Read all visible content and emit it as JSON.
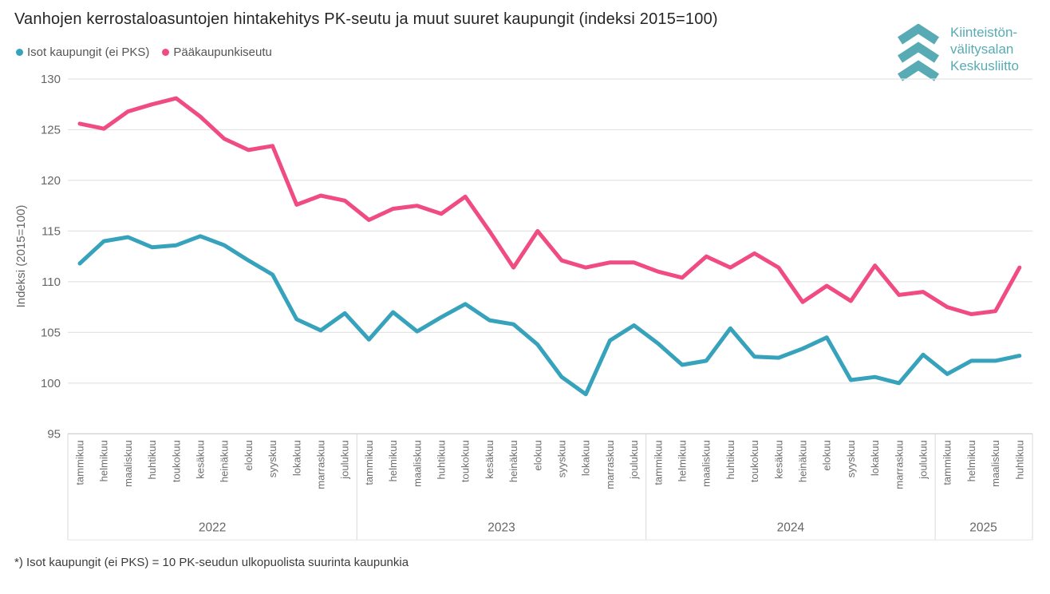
{
  "title": "Vanhojen kerrostaloasuntojen hintakehitys PK-seutu ja muut suuret kaupungit (indeksi 2015=100)",
  "legend": [
    {
      "label": "Isot kaupungit (ei PKS)",
      "color": "#36A2BC"
    },
    {
      "label": "Pääkaupunkiseutu",
      "color": "#F04C82"
    }
  ],
  "logo": {
    "icon": "triple-chevron-up-icon",
    "color": "#58ABB4",
    "lines": [
      "Kiinteistön-",
      "välitysalan",
      "Keskusliitto"
    ]
  },
  "footnote": "*) Isot kaupungit (ei PKS) = 10 PK-seudun ulkopuolista suurinta kaupunkia",
  "chart_data": {
    "type": "line",
    "title": "Vanhojen kerrostaloasuntojen hintakehitys PK-seutu ja muut suuret kaupungit (indeksi 2015=100)",
    "xlabel": "",
    "ylabel": "Indeksi (2015=100)",
    "ylim": [
      95,
      130
    ],
    "yticks": [
      95,
      100,
      105,
      110,
      115,
      120,
      125,
      130
    ],
    "grid": true,
    "legend_position": "top-left",
    "x_months": [
      "tammikuu",
      "helmikuu",
      "maaliskuu",
      "huhtikuu",
      "toukokuu",
      "kesäkuu",
      "heinäkuu",
      "elokuu",
      "syyskuu",
      "lokakuu",
      "marraskuu",
      "joulukuu",
      "tammikuu",
      "helmikuu",
      "maaliskuu",
      "huhtikuu",
      "toukokuu",
      "kesäkuu",
      "heinäkuu",
      "elokuu",
      "syyskuu",
      "lokakuu",
      "marraskuu",
      "joulukuu",
      "tammikuu",
      "helmikuu",
      "maaliskuu",
      "huhtikuu",
      "toukokuu",
      "kesäkuu",
      "heinäkuu",
      "elokuu",
      "syyskuu",
      "lokakuu",
      "marraskuu",
      "joulukuu",
      "tammikuu",
      "helmikuu",
      "maaliskuu",
      "huhtikuu"
    ],
    "years": [
      {
        "label": "2022",
        "months": 12
      },
      {
        "label": "2023",
        "months": 12
      },
      {
        "label": "2024",
        "months": 12
      },
      {
        "label": "2025",
        "months": 4
      }
    ],
    "series": [
      {
        "name": "Isot kaupungit (ei PKS)",
        "color": "#36A2BC",
        "values": [
          111.8,
          114.0,
          114.4,
          113.4,
          113.6,
          114.5,
          113.6,
          112.1,
          110.7,
          106.3,
          105.2,
          106.9,
          104.3,
          107.0,
          105.1,
          106.5,
          107.8,
          106.2,
          105.8,
          103.8,
          100.6,
          98.9,
          104.2,
          105.7,
          103.9,
          101.8,
          102.2,
          105.4,
          102.6,
          102.5,
          103.4,
          104.5,
          100.3,
          100.6,
          100.0,
          102.8,
          100.9,
          102.2,
          102.2,
          102.7
        ]
      },
      {
        "name": "Pääkaupunkiseutu",
        "color": "#F04C82",
        "values": [
          125.6,
          125.1,
          126.8,
          127.5,
          128.1,
          126.3,
          124.1,
          123.0,
          123.4,
          117.6,
          118.5,
          118.0,
          116.1,
          117.2,
          117.5,
          116.7,
          118.4,
          115.0,
          111.4,
          115.0,
          112.1,
          111.4,
          111.9,
          111.9,
          111.0,
          110.4,
          112.5,
          111.4,
          112.8,
          111.4,
          108.0,
          109.6,
          108.1,
          111.6,
          108.7,
          109.0,
          107.5,
          106.8,
          107.1,
          111.4
        ]
      }
    ]
  }
}
